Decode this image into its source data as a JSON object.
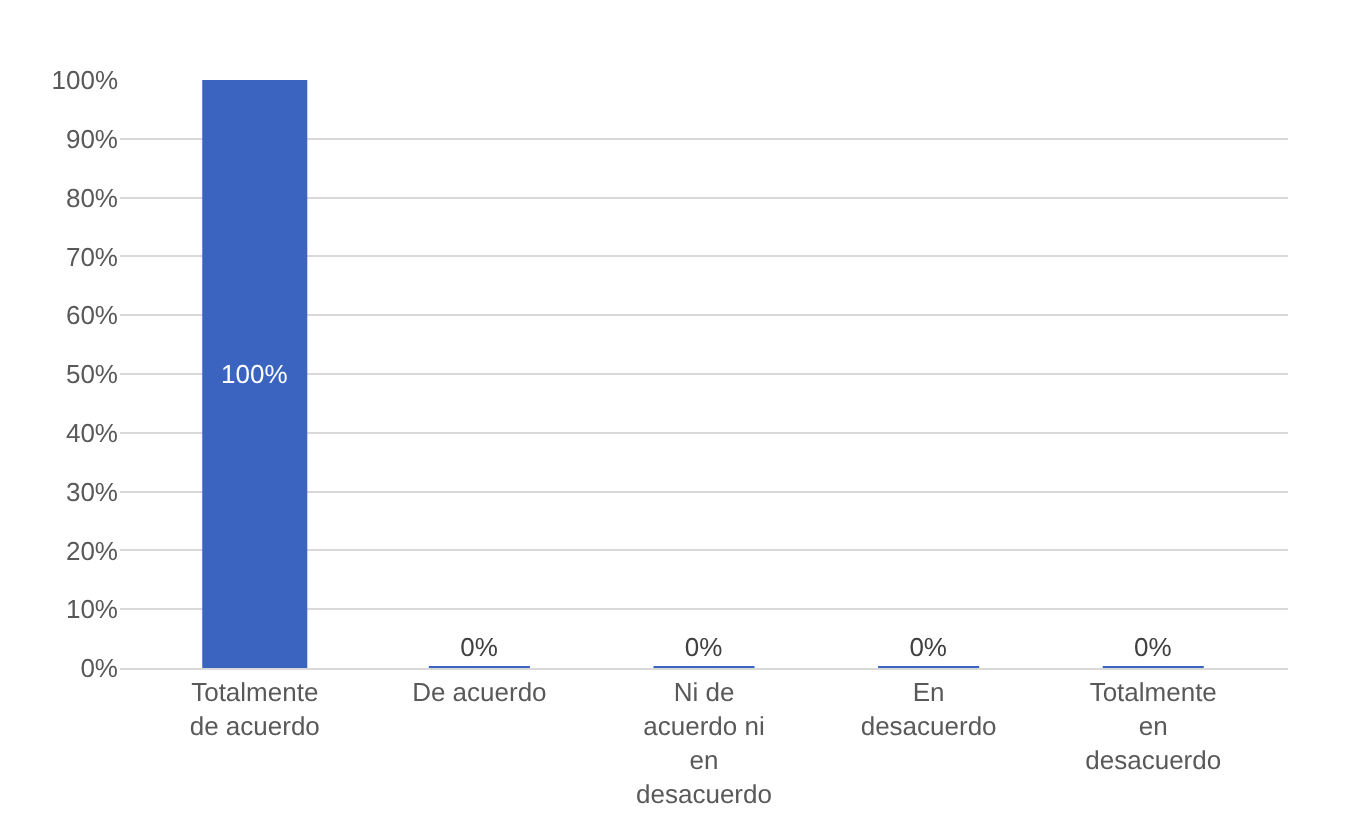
{
  "chart_data": {
    "type": "bar",
    "categories": [
      "Totalmente de acuerdo",
      "De acuerdo",
      "Ni de acuerdo ni en desacuerdo",
      "En desacuerdo",
      "Totalmente en desacuerdo"
    ],
    "values": [
      100,
      0,
      0,
      0,
      0
    ],
    "value_labels": [
      "100%",
      "0%",
      "0%",
      "0%",
      "0%"
    ],
    "color": "#3a64c0",
    "ylim": [
      0,
      100
    ],
    "yticks": [
      {
        "value": 0,
        "label": "0%"
      },
      {
        "value": 10,
        "label": "10%"
      },
      {
        "value": 20,
        "label": "20%"
      },
      {
        "value": 30,
        "label": "30%"
      },
      {
        "value": 40,
        "label": "40%"
      },
      {
        "value": 50,
        "label": "50%"
      },
      {
        "value": 60,
        "label": "60%"
      },
      {
        "value": 70,
        "label": "70%"
      },
      {
        "value": 80,
        "label": "80%"
      },
      {
        "value": 90,
        "label": "90%"
      },
      {
        "value": 100,
        "label": "100%"
      }
    ],
    "grid": "y"
  }
}
